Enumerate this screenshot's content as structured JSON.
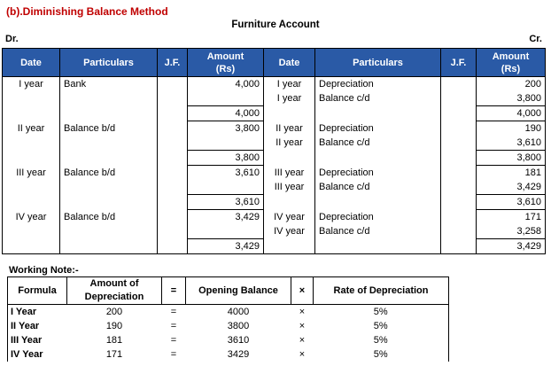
{
  "heading": "(b).Diminishing Balance Method",
  "account_title": "Furniture Account",
  "dr_label": "Dr.",
  "cr_label": "Cr.",
  "ledger": {
    "headers": {
      "date": "Date",
      "particulars": "Particulars",
      "jf": "J.F.",
      "amount_line1": "Amount",
      "amount_line2": "(Rs)"
    },
    "rows": [
      {
        "ld": "I year",
        "lp": "Bank",
        "la": "4,000",
        "rd": "I year",
        "rp": "Depreciation",
        "ra": "200"
      },
      {
        "ld": "",
        "lp": "",
        "la": "",
        "rd": "I year",
        "rp": "Balance c/d",
        "ra": "3,800"
      },
      {
        "ld": "",
        "lp": "",
        "la": "4,000",
        "rd": "",
        "rp": "",
        "ra": "4,000"
      },
      {
        "ld": "II year",
        "lp": "Balance b/d",
        "la": "3,800",
        "rd": "II year",
        "rp": "Depreciation",
        "ra": "190"
      },
      {
        "ld": "",
        "lp": "",
        "la": "",
        "rd": "II year",
        "rp": "Balance c/d",
        "ra": "3,610"
      },
      {
        "ld": "",
        "lp": "",
        "la": "3,800",
        "rd": "",
        "rp": "",
        "ra": "3,800"
      },
      {
        "ld": "III year",
        "lp": "Balance b/d",
        "la": "3,610",
        "rd": "III year",
        "rp": "Depreciation",
        "ra": "181"
      },
      {
        "ld": "",
        "lp": "",
        "la": "",
        "rd": "III year",
        "rp": "Balance c/d",
        "ra": "3,429"
      },
      {
        "ld": "",
        "lp": "",
        "la": "3,610",
        "rd": "",
        "rp": "",
        "ra": "3,610"
      },
      {
        "ld": "IV year",
        "lp": "Balance b/d",
        "la": "3,429",
        "rd": "IV year",
        "rp": "Depreciation",
        "ra": "171"
      },
      {
        "ld": "",
        "lp": "",
        "la": "",
        "rd": "IV year",
        "rp": "Balance c/d",
        "ra": "3,258"
      },
      {
        "ld": "",
        "lp": "",
        "la": "3,429",
        "rd": "",
        "rp": "",
        "ra": "3,429"
      }
    ]
  },
  "working_note": {
    "title": "Working Note:-",
    "headers": {
      "formula": "Formula",
      "amount_line1": "Amount of",
      "amount_line2": "Depreciation",
      "equals": "=",
      "opening": "Opening Balance",
      "times": "×",
      "rate": "Rate of Depreciation"
    },
    "rows": [
      {
        "year": "I Year",
        "amount": "200",
        "eq": "=",
        "opening": "4000",
        "x": "×",
        "rate": "5%"
      },
      {
        "year": "II Year",
        "amount": "190",
        "eq": "=",
        "opening": "3800",
        "x": "×",
        "rate": "5%"
      },
      {
        "year": "III Year",
        "amount": "181",
        "eq": "=",
        "opening": "3610",
        "x": "×",
        "rate": "5%"
      },
      {
        "year": "IV Year",
        "amount": "171",
        "eq": "=",
        "opening": "3429",
        "x": "×",
        "rate": "5%"
      }
    ]
  }
}
